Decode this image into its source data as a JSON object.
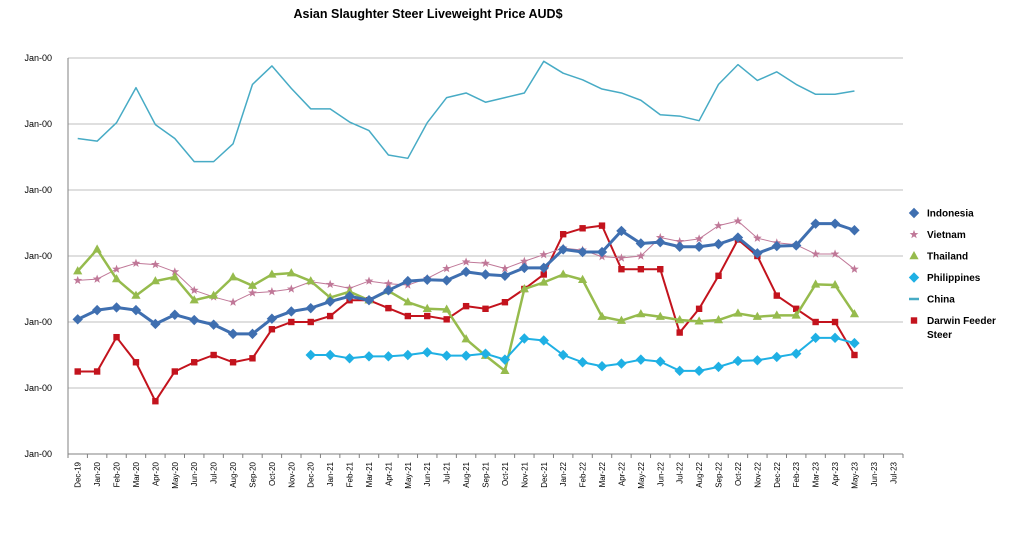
{
  "chart_data": {
    "type": "line",
    "title": "Asian Slaughter Steer Liveweight Price AUD$",
    "xlabel": "",
    "ylabel": "",
    "ylim": [
      0,
      6
    ],
    "y_tick_values": [
      0,
      1,
      2,
      3,
      4,
      5,
      6
    ],
    "y_tick_labels": [
      "Jan-00",
      "Jan-00",
      "Jan-00",
      "Jan-00",
      "Jan-00",
      "Jan-00",
      "Jan-00"
    ],
    "grid": true,
    "legend_position": "right",
    "categories": [
      "Dec-19",
      "Jan-20",
      "Feb-20",
      "Mar-20",
      "Apr-20",
      "May-20",
      "Jun-20",
      "Jul-20",
      "Aug-20",
      "Sep-20",
      "Oct-20",
      "Nov-20",
      "Dec-20",
      "Jan-21",
      "Feb-21",
      "Mar-21",
      "Apr-21",
      "May-21",
      "Jun-21",
      "Jul-21",
      "Aug-21",
      "Sep-21",
      "Oct-21",
      "Nov-21",
      "Dec-21",
      "Jan-22",
      "Feb-22",
      "Mar-22",
      "Apr-22",
      "May-22",
      "Jun-22",
      "Jul-22",
      "Aug-22",
      "Sep-22",
      "Oct-22",
      "Nov-22",
      "Dec-22",
      "Feb-23",
      "Mar-23",
      "Apr-23",
      "May-23",
      "Jun-23",
      "Jul-23"
    ],
    "series": [
      {
        "name": "Indonesia",
        "color": "#3f6fb0",
        "marker": "diamond",
        "stroke_width": 3,
        "values": [
          2.04,
          2.18,
          2.22,
          2.18,
          1.97,
          2.11,
          2.03,
          1.96,
          1.82,
          1.82,
          2.05,
          2.16,
          2.21,
          2.31,
          2.39,
          2.33,
          2.48,
          2.62,
          2.64,
          2.63,
          2.76,
          2.72,
          2.7,
          2.82,
          2.82,
          3.1,
          3.06,
          3.06,
          3.38,
          3.19,
          3.21,
          3.14,
          3.14,
          3.18,
          3.28,
          3.04,
          3.15,
          3.16,
          3.49,
          3.49,
          3.39,
          null,
          null
        ]
      },
      {
        "name": "Vietnam",
        "color": "#c07898",
        "marker": "star",
        "stroke_width": 1,
        "values": [
          2.63,
          2.65,
          2.8,
          2.89,
          2.87,
          2.76,
          2.48,
          2.38,
          2.3,
          2.44,
          2.46,
          2.5,
          2.61,
          2.57,
          2.51,
          2.62,
          2.58,
          2.56,
          2.66,
          2.81,
          2.91,
          2.89,
          2.81,
          2.92,
          3.02,
          3.12,
          3.09,
          2.99,
          2.97,
          3.0,
          3.28,
          3.22,
          3.26,
          3.46,
          3.53,
          3.27,
          3.2,
          3.17,
          3.03,
          3.03,
          2.8,
          null,
          null
        ]
      },
      {
        "name": "Thailand",
        "color": "#96bb4d",
        "marker": "triangle",
        "stroke_width": 2.5,
        "values": [
          2.77,
          3.1,
          2.65,
          2.4,
          2.62,
          2.68,
          2.33,
          2.4,
          2.68,
          2.55,
          2.72,
          2.74,
          2.62,
          2.37,
          2.46,
          2.33,
          2.47,
          2.3,
          2.2,
          2.19,
          1.74,
          1.49,
          1.26,
          2.5,
          2.6,
          2.72,
          2.64,
          2.08,
          2.02,
          2.12,
          2.08,
          2.03,
          2.01,
          2.03,
          2.13,
          2.08,
          2.1,
          2.1,
          2.57,
          2.56,
          2.12,
          null,
          null
        ]
      },
      {
        "name": "Philippines",
        "color": "#1fb0e4",
        "marker": "diamond",
        "stroke_width": 2,
        "values": [
          null,
          null,
          null,
          null,
          null,
          null,
          null,
          null,
          null,
          null,
          null,
          null,
          1.5,
          1.5,
          1.45,
          1.48,
          1.48,
          1.5,
          1.54,
          1.49,
          1.49,
          1.52,
          1.43,
          1.75,
          1.72,
          1.5,
          1.39,
          1.33,
          1.37,
          1.43,
          1.4,
          1.26,
          1.26,
          1.32,
          1.41,
          1.42,
          1.47,
          1.52,
          1.76,
          1.76,
          1.68,
          null,
          null
        ]
      },
      {
        "name": "China",
        "color": "#47abc5",
        "marker": "none",
        "stroke_width": 1.5,
        "values": [
          4.78,
          4.74,
          5.02,
          5.55,
          4.99,
          4.78,
          4.43,
          4.43,
          4.7,
          5.6,
          5.88,
          5.54,
          5.23,
          5.23,
          5.03,
          4.9,
          4.53,
          4.48,
          5.02,
          5.4,
          5.47,
          5.33,
          5.4,
          5.47,
          5.95,
          5.77,
          5.67,
          5.53,
          5.47,
          5.36,
          5.14,
          5.12,
          5.05,
          5.6,
          5.9,
          5.66,
          5.79,
          5.6,
          5.45,
          5.45,
          5.5,
          null,
          null
        ]
      },
      {
        "name": "Darwin Feeder Steer",
        "color": "#c3131d",
        "marker": "square",
        "stroke_width": 2,
        "values": [
          1.25,
          1.25,
          1.77,
          1.39,
          0.8,
          1.25,
          1.39,
          1.5,
          1.39,
          1.45,
          1.89,
          2.0,
          2.0,
          2.09,
          2.33,
          2.33,
          2.21,
          2.09,
          2.09,
          2.04,
          2.24,
          2.2,
          2.3,
          2.5,
          2.72,
          3.33,
          3.42,
          3.46,
          2.8,
          2.8,
          2.8,
          1.84,
          2.2,
          2.7,
          3.25,
          3.0,
          2.4,
          2.2,
          2.0,
          2.0,
          1.5,
          null,
          null
        ]
      }
    ]
  }
}
